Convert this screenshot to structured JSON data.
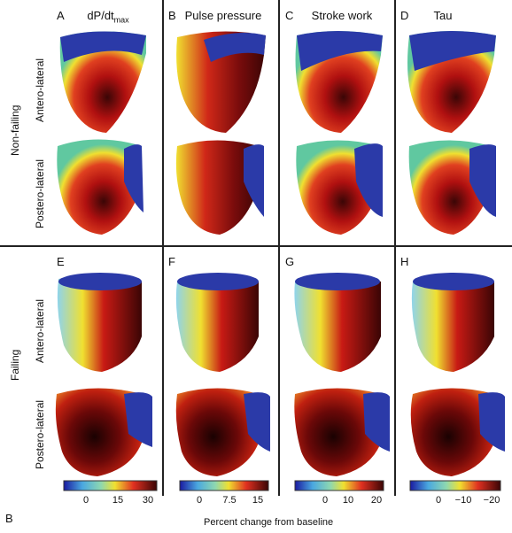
{
  "columns": [
    {
      "letter": "A",
      "title": "dP/dt",
      "subscript": "max"
    },
    {
      "letter": "B",
      "title": "Pulse pressure",
      "subscript": ""
    },
    {
      "letter": "C",
      "title": "Stroke work",
      "subscript": ""
    },
    {
      "letter": "D",
      "title": "Tau",
      "subscript": ""
    }
  ],
  "bottom_letters": [
    "E",
    "F",
    "G",
    "H"
  ],
  "row_groups": {
    "top": "Non-failing",
    "bottom": "Failing"
  },
  "view_labels": {
    "antero": "Antero-lateral",
    "postero": "Postero-lateral"
  },
  "colorbars": [
    {
      "ticks": [
        "0",
        "15",
        "30"
      ]
    },
    {
      "ticks": [
        "0",
        "7.5",
        "15"
      ]
    },
    {
      "ticks": [
        "0",
        "10",
        "20"
      ]
    },
    {
      "ticks": [
        "0",
        "−10",
        "−20"
      ]
    }
  ],
  "figure_letter": "B",
  "xaxis_caption": "Percent change from baseline",
  "colors": {
    "cap": "#2b3aa8",
    "red": "#c01818",
    "darkred": "#4a0a0a",
    "yellow": "#f0e030",
    "green": "#50c060",
    "cyan": "#80d0e8"
  }
}
